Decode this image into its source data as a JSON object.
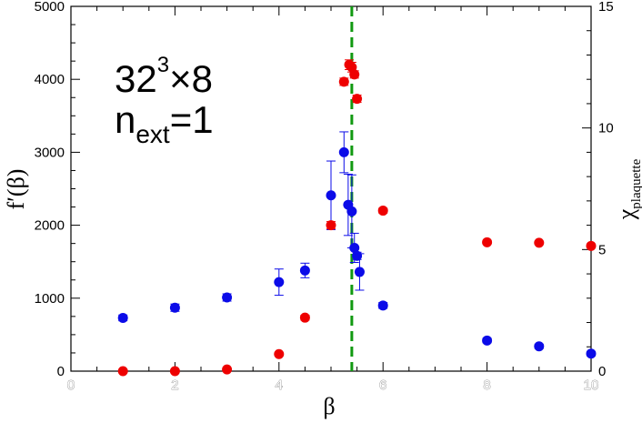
{
  "chart_data": {
    "type": "scatter",
    "xlabel": "β",
    "ylabel": "f′(β)",
    "y2label_main": "χ",
    "y2label_sub": "plaquette",
    "xlim": [
      0,
      10
    ],
    "ylim": [
      0,
      5000
    ],
    "y2lim": [
      0,
      15
    ],
    "xticks": [
      "0",
      "2",
      "4",
      "6",
      "8",
      "10"
    ],
    "yticks": [
      "0",
      "1000",
      "2000",
      "3000",
      "4000",
      "5000"
    ],
    "y2ticks": [
      "0",
      "5",
      "10",
      "15"
    ],
    "annotation": {
      "base": "32",
      "exp": "3",
      "times": "×8",
      "n": "n",
      "n_sub": "ext",
      "n_value": "=1"
    },
    "vline": {
      "x": 5.4,
      "color": "#119911",
      "style": "dashed"
    },
    "colors": {
      "blue": "#0b0be8",
      "red": "#ee0000"
    },
    "series": [
      {
        "color": "blue",
        "axis": "left",
        "points": [
          {
            "x": 1.0,
            "y": 730,
            "err": 40
          },
          {
            "x": 2.0,
            "y": 870,
            "err": 50
          },
          {
            "x": 3.0,
            "y": 1010,
            "err": 50
          },
          {
            "x": 4.0,
            "y": 1220,
            "err": 180
          },
          {
            "x": 4.5,
            "y": 1380,
            "err": 100
          },
          {
            "x": 5.0,
            "y": 2410,
            "err": 470
          },
          {
            "x": 5.25,
            "y": 3000,
            "err": 280
          },
          {
            "x": 5.33,
            "y": 2280,
            "err": 420
          },
          {
            "x": 5.4,
            "y": 2190,
            "err": 500
          },
          {
            "x": 5.45,
            "y": 1690,
            "err": 200
          },
          {
            "x": 5.5,
            "y": 1580,
            "err": 50
          },
          {
            "x": 5.55,
            "y": 1360,
            "err": 250
          },
          {
            "x": 6.0,
            "y": 900,
            "err": 40
          },
          {
            "x": 8.0,
            "y": 420,
            "err": 30
          },
          {
            "x": 9.0,
            "y": 340,
            "err": 30
          },
          {
            "x": 10.0,
            "y": 240,
            "err": 30
          }
        ]
      },
      {
        "color": "red",
        "axis": "right",
        "points": [
          {
            "x": 1.0,
            "y": 0.0,
            "err": 0.05
          },
          {
            "x": 2.0,
            "y": 0.0,
            "err": 0.05
          },
          {
            "x": 3.0,
            "y": 0.07,
            "err": 0.05
          },
          {
            "x": 4.0,
            "y": 0.7,
            "err": 0.05
          },
          {
            "x": 4.5,
            "y": 2.2,
            "err": 0.1
          },
          {
            "x": 5.0,
            "y": 6.0,
            "err": 0.15
          },
          {
            "x": 5.25,
            "y": 11.9,
            "err": 0.15
          },
          {
            "x": 5.35,
            "y": 12.6,
            "err": 0.2
          },
          {
            "x": 5.4,
            "y": 12.5,
            "err": 0.2
          },
          {
            "x": 5.45,
            "y": 12.2,
            "err": 0.15
          },
          {
            "x": 5.5,
            "y": 11.2,
            "err": 0.15
          },
          {
            "x": 6.0,
            "y": 6.6,
            "err": 0.1
          },
          {
            "x": 8.0,
            "y": 5.3,
            "err": 0.05
          },
          {
            "x": 9.0,
            "y": 5.28,
            "err": 0.05
          },
          {
            "x": 10.0,
            "y": 5.15,
            "err": 0.05
          }
        ]
      }
    ]
  }
}
